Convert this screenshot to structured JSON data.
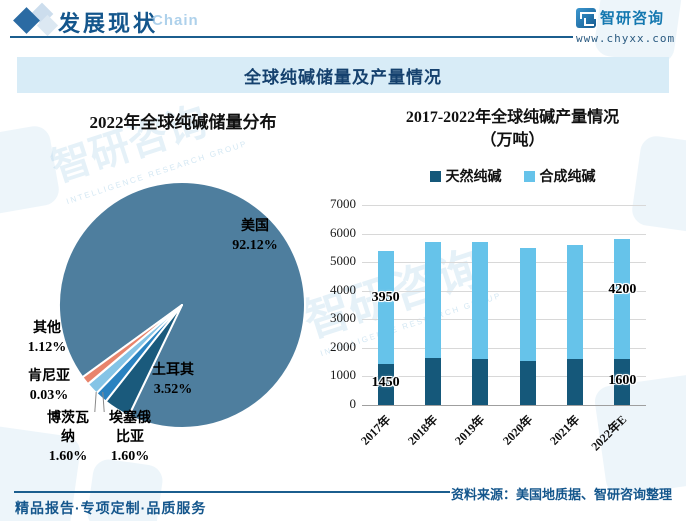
{
  "header": {
    "title": "发展现状",
    "chain_watermark": "Chain",
    "brand_name": "智研咨询",
    "brand_url": "www.chyxx.com"
  },
  "banner_title": "全球纯碱储量及产量情况",
  "watermark_text": "智研咨询",
  "watermark_subtext": "INTELLIGENCE RESEARCH GROUP",
  "footer": {
    "tagline": "精品报告·专项定制·品质服务",
    "source": "资料来源：美国地质据、智研咨询整理"
  },
  "chart_data": [
    {
      "type": "pie",
      "title": "2022年全球纯碱储量分布",
      "start_angle_deg_cw_from_top": 234,
      "slices": [
        {
          "name": "美国",
          "value": 92.12,
          "color": "#4e7e9e"
        },
        {
          "name": "土耳其",
          "value": 3.52,
          "color": "#1a5a7c"
        },
        {
          "name": "埃塞俄比亚",
          "value": 1.6,
          "color": "#2a82c0"
        },
        {
          "name": "博茨瓦纳",
          "value": 1.6,
          "color": "#85c4e6"
        },
        {
          "name": "肯尼亚",
          "value": 0.03,
          "color": "#dcedf6"
        },
        {
          "name": "其他",
          "value": 1.12,
          "color": "#e8846c"
        }
      ],
      "labels": [
        {
          "name": "美国",
          "pct": "92.12%"
        },
        {
          "name": "其他",
          "pct": "1.12%"
        },
        {
          "name": "肯尼亚",
          "pct": "0.03%"
        },
        {
          "name": "土耳其",
          "pct": "3.52%"
        },
        {
          "name": "博茨瓦纳",
          "pct": "1.60%"
        },
        {
          "name": "埃塞俄比亚",
          "pct": "1.60%"
        }
      ]
    },
    {
      "type": "bar",
      "stacked": true,
      "title": "2017-2022年全球纯碱产量情况",
      "title_unit": "（万吨）",
      "categories": [
        "2017年",
        "2018年",
        "2019年",
        "2020年",
        "2021年",
        "2022年E"
      ],
      "series": [
        {
          "name": "天然纯碱",
          "color": "#15587a",
          "values": [
            1450,
            1650,
            1620,
            1550,
            1620,
            1600
          ],
          "labeled": [
            0,
            5
          ]
        },
        {
          "name": "合成纯碱",
          "color": "#66c3ea",
          "values": [
            3950,
            4050,
            4080,
            3950,
            3980,
            4200
          ],
          "labeled": [
            0,
            5
          ]
        }
      ],
      "ylim": [
        0,
        7000
      ],
      "ytick_step": 1000,
      "grid": true,
      "legend_position": "top"
    }
  ]
}
